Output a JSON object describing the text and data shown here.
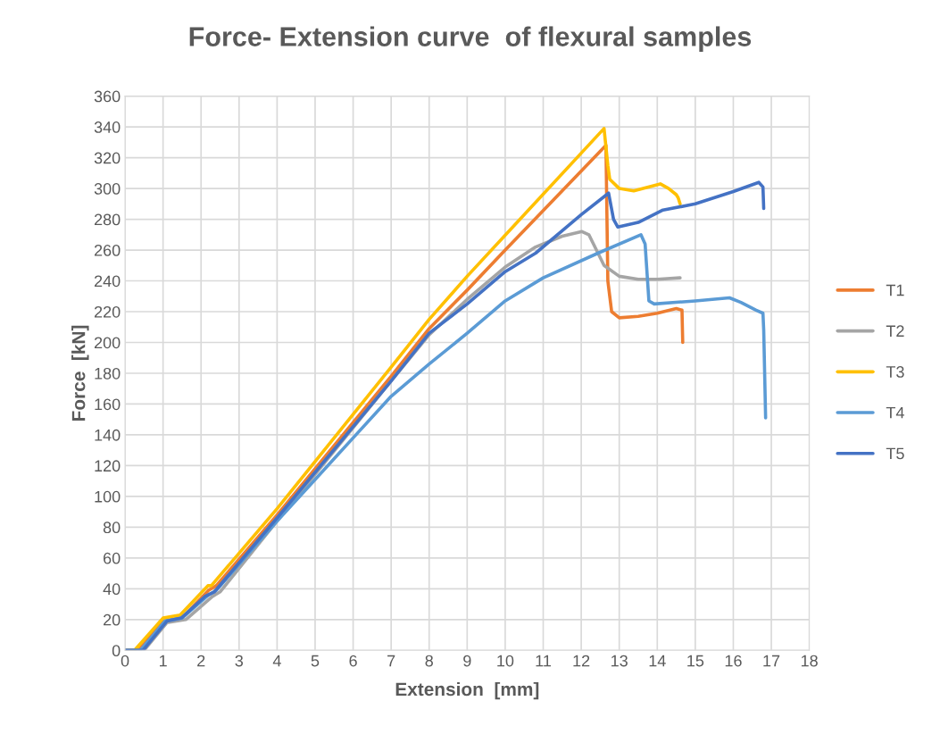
{
  "chart_data": {
    "type": "line",
    "title": "Force- Extension curve  of flexural samples",
    "xlabel": "Extension  [mm]",
    "ylabel": "Force  [kN]",
    "xlim": [
      0,
      18
    ],
    "xticks": [
      0,
      1,
      2,
      3,
      4,
      5,
      6,
      7,
      8,
      9,
      10,
      11,
      12,
      13,
      14,
      15,
      16,
      17,
      18
    ],
    "ylim": [
      0,
      360
    ],
    "yticks": [
      0,
      20,
      40,
      60,
      80,
      100,
      120,
      140,
      160,
      180,
      200,
      220,
      240,
      260,
      280,
      300,
      320,
      340,
      360
    ],
    "grid": true,
    "legend": "right",
    "marker": "none",
    "line_style": "solid",
    "series": [
      {
        "name": "T1",
        "color": "#ed7d31",
        "x": [
          0,
          0.35,
          1.0,
          1.5,
          2.2,
          2.4,
          4,
          7,
          8,
          9,
          10,
          12.65,
          12.7,
          12.8,
          13.0,
          13.5,
          14.0,
          14.5,
          14.65,
          14.67
        ],
        "values": [
          0,
          0,
          19,
          21,
          39,
          42,
          88,
          178,
          209,
          234,
          260,
          328,
          240,
          220,
          216,
          217,
          219,
          222,
          221,
          200
        ]
      },
      {
        "name": "T2",
        "color": "#a5a5a5",
        "x": [
          0,
          0.5,
          1.1,
          1.6,
          2.3,
          2.5,
          4,
          7,
          8,
          9,
          10,
          10.8,
          11.5,
          12.02,
          12.2,
          12.6,
          13.0,
          13.5,
          14.0,
          14.6
        ],
        "values": [
          0,
          0,
          18,
          20,
          35,
          38,
          84,
          175,
          205,
          228,
          249,
          262,
          269,
          272,
          270,
          250,
          243,
          241,
          241,
          242
        ]
      },
      {
        "name": "T3",
        "color": "#ffc000",
        "x": [
          0,
          0.25,
          1.0,
          1.45,
          2.18,
          2.27,
          4,
          7,
          8,
          9,
          12.6,
          12.7,
          12.75,
          13.0,
          13.38,
          14.08,
          14.3,
          14.5,
          14.55,
          14.6
        ],
        "values": [
          0,
          0,
          21,
          23,
          42,
          42,
          92,
          184,
          215,
          243,
          339,
          315,
          306,
          300,
          298.5,
          303,
          300,
          296,
          294,
          290
        ]
      },
      {
        "name": "T4",
        "color": "#5b9bd5",
        "x": [
          0,
          0.4,
          1.05,
          1.5,
          2.2,
          2.4,
          4,
          5,
          6,
          7,
          8,
          9,
          10,
          11,
          12.44,
          13.57,
          13.68,
          13.78,
          13.92,
          15.0,
          15.9,
          16.2,
          16.6,
          16.78,
          16.8,
          16.85
        ],
        "values": [
          0,
          0,
          19,
          21,
          36,
          39,
          84,
          111,
          138,
          165,
          186,
          206,
          227,
          242,
          258,
          270,
          264,
          227,
          225,
          227,
          229,
          226,
          221,
          219,
          208,
          151
        ]
      },
      {
        "name": "T5",
        "color": "#4472c4",
        "x": [
          0,
          0.47,
          1.1,
          1.48,
          2.1,
          2.35,
          4,
          7,
          8,
          9,
          10,
          10.8,
          12.0,
          12.72,
          12.85,
          12.96,
          13.5,
          14.15,
          15.0,
          16.0,
          16.67,
          16.78,
          16.8
        ],
        "values": [
          0,
          0,
          19,
          21,
          35,
          38,
          86,
          175,
          206,
          225,
          246,
          258,
          283,
          297,
          280,
          275,
          278,
          286,
          290,
          298,
          304,
          301,
          287
        ]
      }
    ]
  }
}
